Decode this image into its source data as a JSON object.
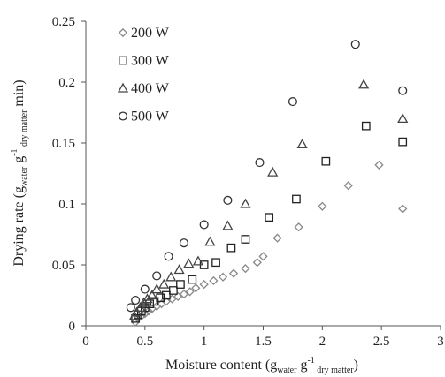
{
  "chart_data": {
    "type": "scatter",
    "title": "",
    "xlabel": {
      "main": "Moisture content (g",
      "sub1": "water",
      "mid": " g",
      "sup": "-1",
      "sub2": " dry matter",
      "end": ")"
    },
    "ylabel": {
      "main": "Drying rate (g",
      "sub1": "water",
      "mid": " g",
      "sup": "-1",
      "sub2": " dry matter",
      "end": " min)"
    },
    "xlim": [
      0,
      3
    ],
    "ylim": [
      0,
      0.25
    ],
    "xticks": [
      "0",
      "0.5",
      "1",
      "1.5",
      "2",
      "2.5",
      "3"
    ],
    "xtick_values": [
      0,
      0.5,
      1,
      1.5,
      2,
      2.5,
      3
    ],
    "yticks": [
      "0",
      "0.05",
      "0.1",
      "0.15",
      "0.2",
      "0.25"
    ],
    "ytick_values": [
      0,
      0.05,
      0.1,
      0.15,
      0.2,
      0.25
    ],
    "grid": false,
    "legend_position": "top-left",
    "series": [
      {
        "name": "200 W",
        "marker": "diamond",
        "color": "#888888",
        "points": [
          [
            0.42,
            0.003
          ],
          [
            0.44,
            0.006
          ],
          [
            0.47,
            0.008
          ],
          [
            0.5,
            0.01
          ],
          [
            0.53,
            0.012
          ],
          [
            0.56,
            0.014
          ],
          [
            0.6,
            0.016
          ],
          [
            0.64,
            0.018
          ],
          [
            0.68,
            0.02
          ],
          [
            0.73,
            0.022
          ],
          [
            0.78,
            0.024
          ],
          [
            0.83,
            0.026
          ],
          [
            0.88,
            0.028
          ],
          [
            0.93,
            0.031
          ],
          [
            1.0,
            0.034
          ],
          [
            1.08,
            0.037
          ],
          [
            1.16,
            0.04
          ],
          [
            1.25,
            0.043
          ],
          [
            1.35,
            0.047
          ],
          [
            1.45,
            0.052
          ],
          [
            1.5,
            0.057
          ],
          [
            1.62,
            0.072
          ],
          [
            1.8,
            0.081
          ],
          [
            2.0,
            0.098
          ],
          [
            2.22,
            0.115
          ],
          [
            2.48,
            0.132
          ],
          [
            2.68,
            0.096
          ]
        ]
      },
      {
        "name": "300 W",
        "marker": "square",
        "color": "#222222",
        "points": [
          [
            0.42,
            0.006
          ],
          [
            0.44,
            0.009
          ],
          [
            0.47,
            0.012
          ],
          [
            0.5,
            0.015
          ],
          [
            0.54,
            0.018
          ],
          [
            0.58,
            0.02
          ],
          [
            0.63,
            0.023
          ],
          [
            0.68,
            0.025
          ],
          [
            0.74,
            0.029
          ],
          [
            0.8,
            0.034
          ],
          [
            0.9,
            0.038
          ],
          [
            1.0,
            0.05
          ],
          [
            1.1,
            0.052
          ],
          [
            1.23,
            0.064
          ],
          [
            1.35,
            0.071
          ],
          [
            1.55,
            0.089
          ],
          [
            1.78,
            0.104
          ],
          [
            2.03,
            0.135
          ],
          [
            2.37,
            0.164
          ],
          [
            2.68,
            0.151
          ]
        ]
      },
      {
        "name": "400 W",
        "marker": "triangle",
        "color": "#444444",
        "points": [
          [
            0.41,
            0.008
          ],
          [
            0.43,
            0.011
          ],
          [
            0.46,
            0.015
          ],
          [
            0.49,
            0.019
          ],
          [
            0.52,
            0.022
          ],
          [
            0.56,
            0.025
          ],
          [
            0.6,
            0.03
          ],
          [
            0.66,
            0.034
          ],
          [
            0.72,
            0.04
          ],
          [
            0.79,
            0.046
          ],
          [
            0.87,
            0.051
          ],
          [
            0.95,
            0.053
          ],
          [
            1.05,
            0.069
          ],
          [
            1.2,
            0.082
          ],
          [
            1.35,
            0.1
          ],
          [
            1.58,
            0.126
          ],
          [
            1.83,
            0.149
          ],
          [
            2.35,
            0.198
          ],
          [
            2.68,
            0.17
          ]
        ]
      },
      {
        "name": "500 W",
        "marker": "circle",
        "color": "#333333",
        "points": [
          [
            0.38,
            0.015
          ],
          [
            0.42,
            0.021
          ],
          [
            0.5,
            0.03
          ],
          [
            0.6,
            0.041
          ],
          [
            0.7,
            0.057
          ],
          [
            0.83,
            0.068
          ],
          [
            1.0,
            0.083
          ],
          [
            1.2,
            0.103
          ],
          [
            1.47,
            0.134
          ],
          [
            1.75,
            0.184
          ],
          [
            2.28,
            0.231
          ],
          [
            2.68,
            0.193
          ]
        ]
      }
    ]
  }
}
